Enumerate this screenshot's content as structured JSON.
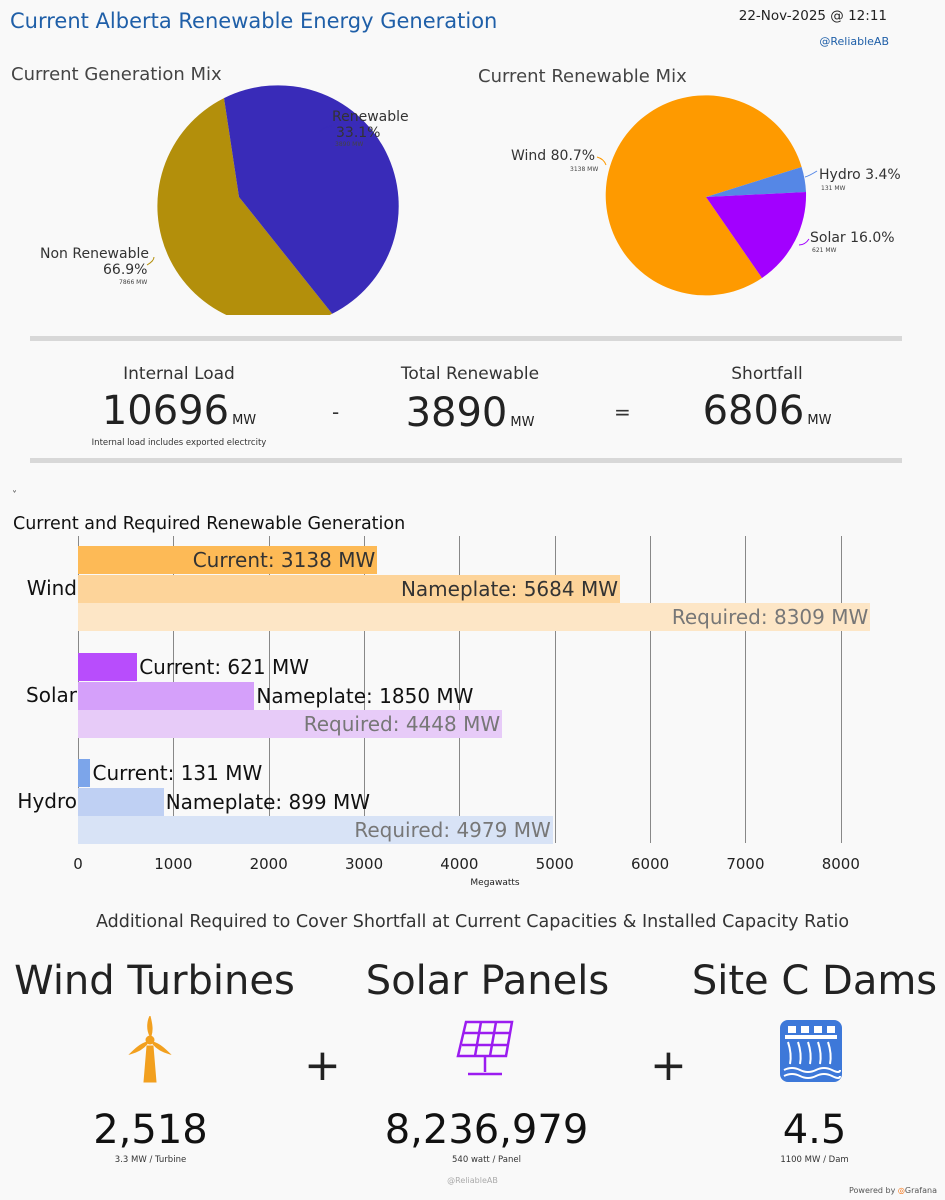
{
  "header": {
    "title": "Current Alberta Renewable Energy Generation",
    "datetime": "22-Nov-2025 @ 12:11",
    "handle": "@ReliableAB"
  },
  "generation_mix": {
    "title": "Current Generation Mix",
    "renewable": {
      "label": "Renewable",
      "pct": "33.1%",
      "mw": "3890 MW",
      "color": "#392bb8"
    },
    "non_renewable": {
      "label": "Non Renewable",
      "pct": "66.9%",
      "mw": "7866 MW",
      "color": "#b38f0b"
    }
  },
  "renewable_mix": {
    "title": "Current Renewable Mix",
    "wind": {
      "label": "Wind 80.7%",
      "mw": "3138 MW",
      "color": "#fe9a00"
    },
    "hydro": {
      "label": "Hydro 3.4%",
      "mw": "131 MW",
      "color": "#5587e6"
    },
    "solar": {
      "label": "Solar 16.0%",
      "mw": "621 MW",
      "color": "#a200ff"
    }
  },
  "summary": {
    "internal_load": {
      "title": "Internal Load",
      "value": "10696",
      "unit": "MW",
      "note": "Internal load includes exported electrcity"
    },
    "minus": "-",
    "total_renewable": {
      "title": "Total Renewable",
      "value": "3890",
      "unit": "MW"
    },
    "equals": "=",
    "shortfall": {
      "title": "Shortfall",
      "value": "6806",
      "unit": "MW"
    }
  },
  "collapse_glyph": "˅",
  "chart_data": {
    "type": "bar",
    "orientation": "horizontal",
    "title": "Current and Required Renewable Generation",
    "xlabel": "Megawatts",
    "xlim": [
      0,
      8300
    ],
    "xticks": [
      "0",
      "1000",
      "2000",
      "3000",
      "4000",
      "5000",
      "6000",
      "7000",
      "8000"
    ],
    "grid": true,
    "categories": [
      "Wind",
      "Solar",
      "Hydro"
    ],
    "series": [
      {
        "name": "Current",
        "values": [
          3138,
          621,
          131
        ]
      },
      {
        "name": "Nameplate",
        "values": [
          5684,
          1850,
          899
        ]
      },
      {
        "name": "Required",
        "values": [
          8309,
          4448,
          4979
        ]
      }
    ],
    "bar_labels": [
      [
        "Current: 3138 MW",
        "Nameplate: 5684 MW",
        "Required: 8309 MW"
      ],
      [
        "Current: 621 MW",
        "Nameplate: 1850 MW",
        "Required: 4448 MW"
      ],
      [
        "Current: 131 MW",
        "Nameplate: 899 MW",
        "Required: 4979 MW"
      ]
    ],
    "colors": {
      "Wind": [
        "#fdba56",
        "#fdd49a",
        "#fde6c6"
      ],
      "Solar": [
        "#b84dfc",
        "#d5a0fa",
        "#e7cbf8"
      ],
      "Hydro": [
        "#7ca5ea",
        "#bfd0f3",
        "#d8e3f6"
      ]
    }
  },
  "additional": {
    "title": "Additional Required to Cover Shortfall at Current Capacities & Installed Capacity Ratio",
    "plus": "+",
    "wind": {
      "title": "Wind Turbines",
      "value": "2,518",
      "sub": "3.3 MW / Turbine",
      "icon": "wind-turbine-icon",
      "color": "#f2a01f"
    },
    "solar": {
      "title": "Solar Panels",
      "value": "8,236,979",
      "sub": "540 watt / Panel",
      "icon": "solar-panel-icon",
      "color": "#9b1cf0"
    },
    "dams": {
      "title": "Site C Dams",
      "value": "4.5",
      "sub": "1100 MW / Dam",
      "icon": "dam-icon",
      "color": "#3d78d9"
    }
  },
  "footer": {
    "handle": "@ReliableAB",
    "powered": "Powered by",
    "brand": "Grafana"
  }
}
